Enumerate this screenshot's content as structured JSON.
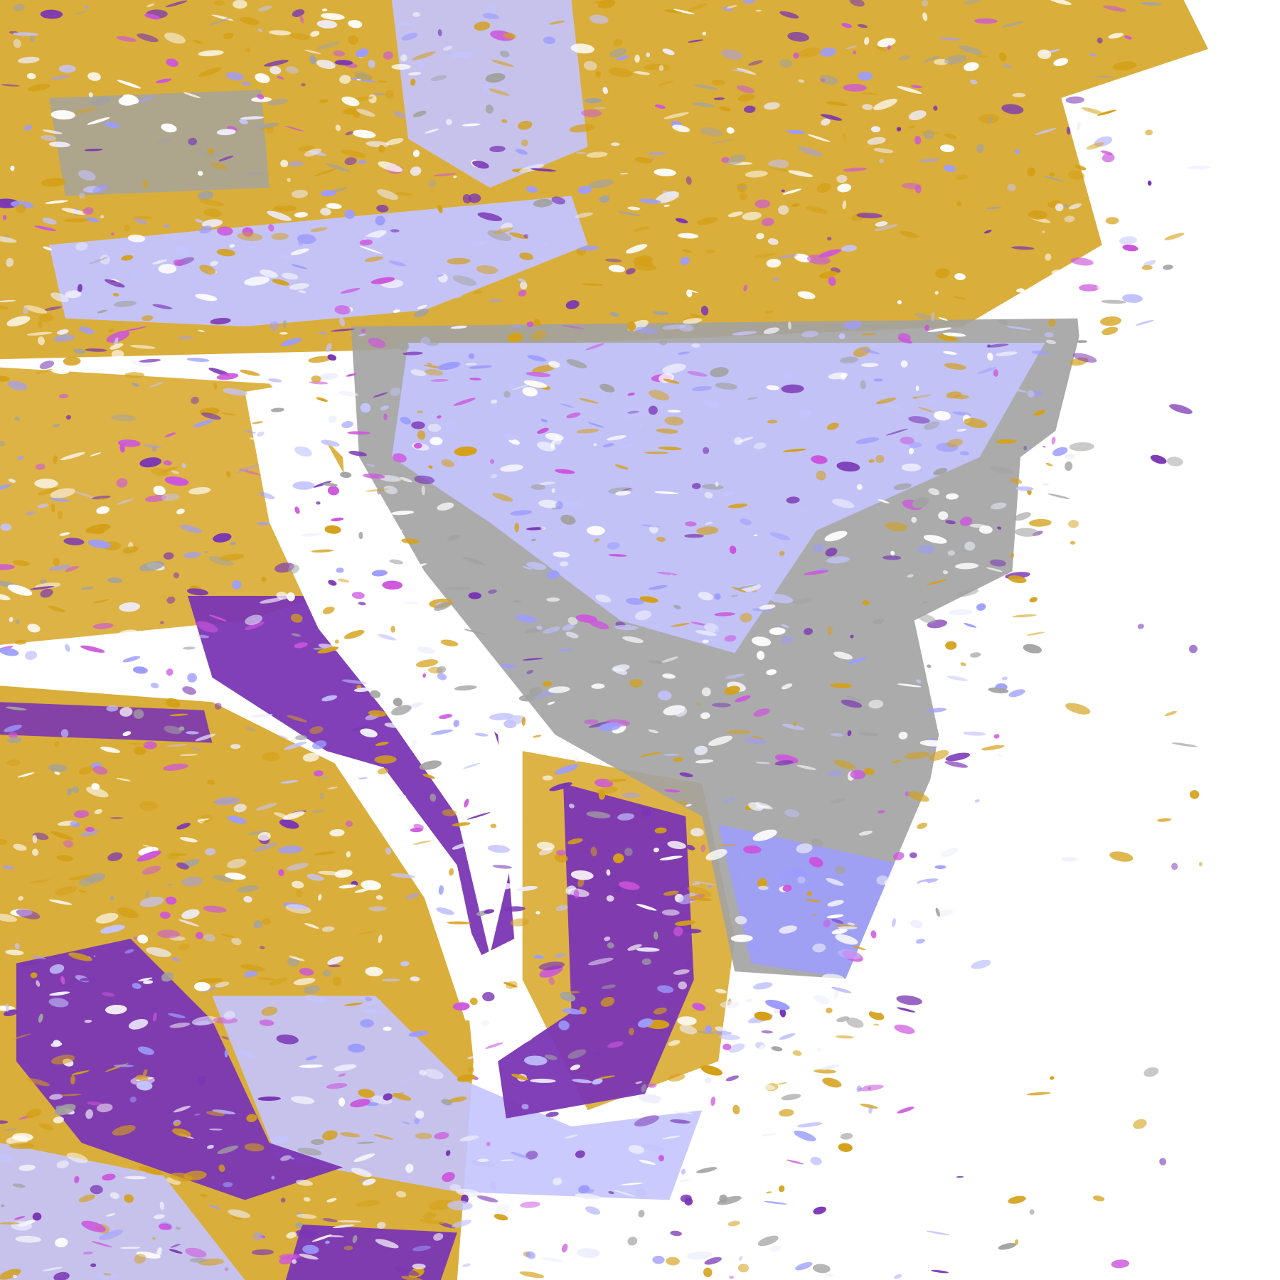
{
  "image": {
    "kind": "false-color satellite cloud classification",
    "background": "#ffffff",
    "palette": {
      "gold": "#d4a018",
      "purple": "#7a36b4",
      "lavender": "#c4c4ff",
      "pale": "#eeeeff",
      "gray": "#a2a2a2",
      "blue": "#9c9cff",
      "magenta": "#cc55dd"
    }
  }
}
